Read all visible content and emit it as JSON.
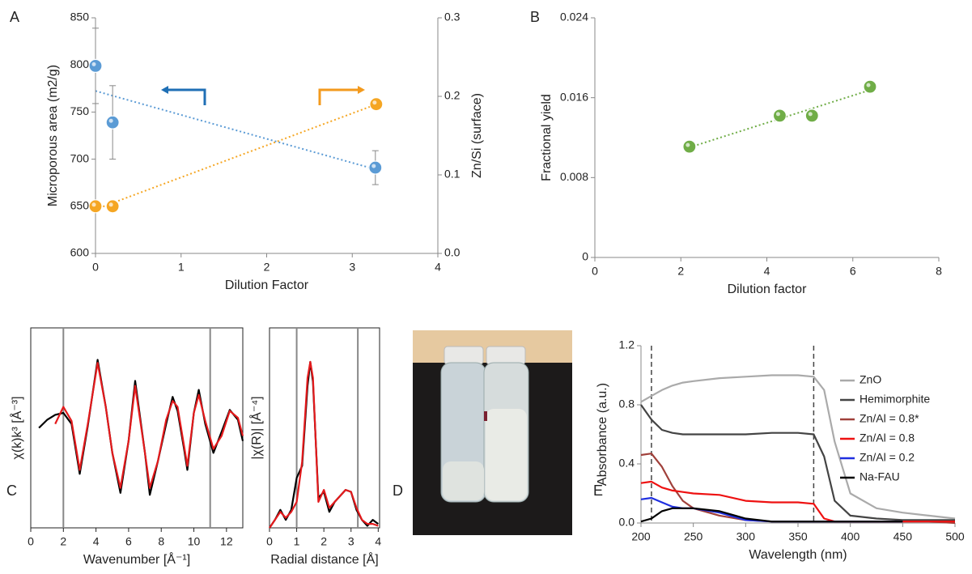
{
  "chart_data": [
    {
      "panel": "A",
      "type": "scatter",
      "xlabel": "Dilution Factor",
      "ylabel": "Microporous area (m2/g)",
      "y2label": "Zn/Si (surface)",
      "xlim": [
        0,
        4
      ],
      "xticks": [
        0,
        1,
        2,
        3,
        4
      ],
      "ylim": [
        600,
        850
      ],
      "yticks": [
        600,
        650,
        700,
        750,
        800,
        850
      ],
      "y2lim": [
        0,
        0.3
      ],
      "y2ticks": [
        {
          "value": 0,
          "label": "0.0"
        },
        0.1,
        0.2,
        0.3
      ],
      "series": [
        {
          "color": "#5b9bd5",
          "x": [
            0,
            0.2,
            3.27
          ],
          "values": [
            799,
            739,
            691
          ],
          "errors": [
            40,
            39,
            18
          ],
          "trendline": true
        },
        {
          "color": "#f5a623",
          "axis": "y2",
          "x": [
            0,
            0.2,
            3.28
          ],
          "values": [
            0.06,
            0.06,
            0.19
          ],
          "trendline": true
        }
      ]
    },
    {
      "panel": "B",
      "type": "scatter",
      "xlabel": "Dilution factor",
      "ylabel": "Fractional yield",
      "xlim": [
        0,
        8
      ],
      "xticks": [
        0,
        2,
        4,
        6,
        8
      ],
      "ylim": [
        0,
        0.024
      ],
      "yticks": [
        0,
        0.008,
        0.016,
        0.024
      ],
      "series": [
        {
          "color": "#70ad47",
          "x": [
            2.2,
            4.3,
            5.05,
            6.4
          ],
          "values": [
            0.0111,
            0.0142,
            0.0142,
            0.0171
          ],
          "trendline": true
        }
      ]
    },
    {
      "panel": "C",
      "type": "line",
      "xlabel": "Wavenumber [Å⁻¹]",
      "ylabel": "χ(k)k³ [Å⁻³]",
      "xlim": [
        0,
        13
      ],
      "xticks": [
        0,
        2,
        4,
        6,
        8,
        10,
        12
      ],
      "ylim": [
        -1,
        1
      ],
      "vlines": [
        2,
        11
      ],
      "vline_dashed": false,
      "x": [
        0.5,
        1,
        1.5,
        2,
        2.5,
        3,
        3.5,
        4.1,
        4.6,
        5,
        5.5,
        6,
        6.4,
        7,
        7.3,
        7.8,
        8.3,
        8.7,
        9,
        9.4,
        9.6,
        10,
        10.3,
        10.7,
        11.2,
        11.7,
        12.2,
        12.7,
        13
      ],
      "series": [
        {
          "color": "#000000",
          "values": [
            0,
            0.08,
            0.13,
            0.15,
            0.04,
            -0.46,
            0.02,
            0.68,
            0.21,
            -0.25,
            -0.65,
            -0.13,
            0.47,
            -0.25,
            -0.67,
            -0.33,
            0.04,
            0.31,
            0.17,
            -0.21,
            -0.42,
            0.15,
            0.38,
            0.04,
            -0.25,
            -0.04,
            0.18,
            0.08,
            -0.13
          ]
        },
        {
          "color": "#e41a1c",
          "values": [
            null,
            null,
            0.04,
            0.21,
            0.07,
            -0.42,
            0.04,
            0.65,
            0.21,
            -0.25,
            -0.6,
            -0.13,
            0.42,
            -0.25,
            -0.6,
            -0.33,
            0.08,
            0.27,
            0.21,
            -0.18,
            -0.38,
            0.15,
            0.33,
            0.07,
            -0.21,
            -0.08,
            0.17,
            0.1,
            -0.08
          ]
        }
      ]
    },
    {
      "type": "line",
      "xlabel": "Radial distance [Å]",
      "ylabel": "|χ(R)| [Å⁻⁴]",
      "xlim": [
        0,
        4.05
      ],
      "xticks": [
        0,
        1,
        2,
        3,
        4
      ],
      "ylim": [
        0,
        1
      ],
      "vlines": [
        1,
        3.25
      ],
      "vline_dashed": false,
      "x": [
        0,
        0.2,
        0.4,
        0.6,
        0.8,
        1.0,
        1.2,
        1.4,
        1.5,
        1.6,
        1.8,
        2.0,
        2.2,
        2.4,
        2.6,
        2.8,
        3.0,
        3.2,
        3.4,
        3.6,
        3.8,
        4.0
      ],
      "series": [
        {
          "color": "#000000",
          "values": [
            0,
            0.04,
            0.09,
            0.04,
            0.09,
            0.25,
            0.31,
            0.71,
            0.83,
            0.73,
            0.15,
            0.18,
            0.08,
            0.13,
            0.16,
            0.19,
            0.18,
            0.09,
            0.04,
            0.01,
            0.04,
            0.02
          ]
        },
        {
          "color": "#e41a1c",
          "values": [
            0,
            0.04,
            0.08,
            0.05,
            0.08,
            0.13,
            0.33,
            0.75,
            0.83,
            0.75,
            0.13,
            0.19,
            0.1,
            0.13,
            0.16,
            0.19,
            0.18,
            0.1,
            0.04,
            0.02,
            0.02,
            0.01
          ]
        }
      ]
    },
    {
      "panel": "E",
      "type": "line",
      "xlabel": "Wavelength (nm)",
      "ylabel": "Absorbance (a.u.)",
      "xlim": [
        200,
        500
      ],
      "xticks": [
        200,
        250,
        300,
        350,
        400,
        450,
        500
      ],
      "ylim": [
        0,
        1.2
      ],
      "yticks": [
        {
          "value": 0,
          "label": "0.0"
        },
        0.4,
        0.8,
        1.2
      ],
      "vlines": [
        210,
        365
      ],
      "vline_dashed": true,
      "legend": "upper right",
      "x": [
        200,
        210,
        220,
        230,
        240,
        250,
        275,
        300,
        325,
        350,
        365,
        375,
        385,
        400,
        425,
        450,
        475,
        500
      ],
      "series": [
        {
          "name": "ZnO",
          "color": "#aaaaaa",
          "values": [
            0.82,
            0.86,
            0.9,
            0.93,
            0.95,
            0.96,
            0.98,
            0.99,
            1.0,
            1.0,
            0.99,
            0.9,
            0.55,
            0.2,
            0.1,
            0.07,
            0.05,
            0.03
          ]
        },
        {
          "name": "Hemimorphite",
          "color": "#444444",
          "values": [
            0.8,
            0.7,
            0.63,
            0.61,
            0.6,
            0.6,
            0.6,
            0.6,
            0.61,
            0.61,
            0.6,
            0.45,
            0.15,
            0.05,
            0.03,
            0.02,
            0.02,
            0.02
          ]
        },
        {
          "name": "Zn/Al = 0.8*",
          "color": "#a0403a",
          "values": [
            0.46,
            0.47,
            0.38,
            0.25,
            0.15,
            0.1,
            0.05,
            0.02,
            0.01,
            0.01,
            0.01,
            0.01,
            0.01,
            0.01,
            0.01,
            0.01,
            0.01,
            0
          ]
        },
        {
          "name": "Zn/Al = 0.8",
          "color": "#ee1111",
          "values": [
            0.27,
            0.28,
            0.24,
            0.22,
            0.21,
            0.2,
            0.19,
            0.15,
            0.14,
            0.14,
            0.13,
            0.03,
            0.01,
            0.01,
            0.01,
            0.01,
            0.01,
            0.01
          ]
        },
        {
          "name": "Zn/Al = 0.2",
          "color": "#1f2fe0",
          "values": [
            0.16,
            0.17,
            0.14,
            0.11,
            0.1,
            0.1,
            0.07,
            0.02,
            0.01,
            0.01,
            0.01,
            0.01,
            0.01,
            0.01,
            0.01,
            0.01,
            null,
            null
          ]
        },
        {
          "name": "Na-FAU",
          "color": "#000000",
          "values": [
            0.01,
            0.03,
            0.08,
            0.1,
            0.1,
            0.1,
            0.08,
            0.03,
            0.01,
            0.01,
            0.01,
            0.01,
            0.01,
            0.01,
            0.01,
            0.01,
            null,
            null
          ]
        }
      ]
    }
  ],
  "photo": {
    "panel": "D"
  }
}
